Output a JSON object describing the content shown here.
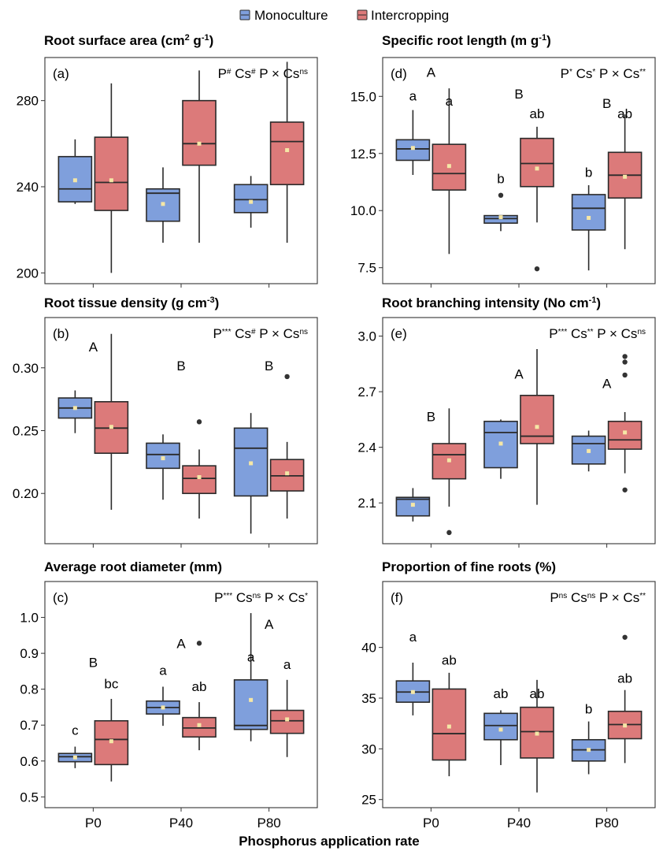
{
  "legend": {
    "items": [
      {
        "label": "Monoculture",
        "color": "#7f9fdc"
      },
      {
        "label": "Intercropping",
        "color": "#dc7a7a"
      }
    ],
    "position": "top-center"
  },
  "x_axis": {
    "title": "Phosphorus application rate",
    "categories": [
      "P0",
      "P40",
      "P80"
    ]
  },
  "colors": {
    "monoculture": "#7f9fdc",
    "intercropping": "#dc7a7a",
    "mean_marker": "#f5e7a6",
    "outline": "#2a2a2a"
  },
  "chart_data": [
    {
      "type": "box",
      "panel": "(a)",
      "title": {
        "main": "Root surface area (cm",
        "sup": "2",
        "mid": " g",
        "sup2": "-1",
        "end": ")"
      },
      "stats": [
        [
          "P",
          "#"
        ],
        [
          "Cs",
          "#"
        ],
        [
          "P × Cs",
          "ns"
        ]
      ],
      "ylim": [
        195,
        300
      ],
      "yticks": [
        200,
        240,
        280
      ],
      "categories": [
        "P0",
        "P40",
        "P80"
      ],
      "groups": [
        {
          "series": "Monoculture",
          "category": "P0",
          "min": 232,
          "q1": 233,
          "median": 239,
          "q3": 254,
          "max": 262,
          "mean": 243,
          "outliers": []
        },
        {
          "series": "Intercropping",
          "category": "P0",
          "min": 200,
          "q1": 229,
          "median": 242,
          "q3": 263,
          "max": 288,
          "mean": 243,
          "outliers": []
        },
        {
          "series": "Monoculture",
          "category": "P40",
          "min": 214,
          "q1": 224,
          "median": 237,
          "q3": 239,
          "max": 249,
          "mean": 232,
          "outliers": []
        },
        {
          "series": "Intercropping",
          "category": "P40",
          "min": 214,
          "q1": 250,
          "median": 260,
          "q3": 280,
          "max": 294,
          "mean": 260,
          "outliers": []
        },
        {
          "series": "Monoculture",
          "category": "P80",
          "min": 221,
          "q1": 228,
          "median": 234,
          "q3": 241,
          "max": 245,
          "mean": 233,
          "outliers": []
        },
        {
          "series": "Intercropping",
          "category": "P80",
          "min": 214,
          "q1": 241,
          "median": 261,
          "q3": 270,
          "max": 298,
          "mean": 257,
          "outliers": []
        }
      ],
      "annotations": []
    },
    {
      "type": "box",
      "panel": "(b)",
      "title": {
        "main": "Root tissue density (g cm",
        "sup": "-3",
        "mid": "",
        "sup2": "",
        "end": ")"
      },
      "stats": [
        [
          "P",
          "***"
        ],
        [
          "Cs",
          "#"
        ],
        [
          "P × Cs",
          "ns"
        ]
      ],
      "ylim": [
        0.16,
        0.34
      ],
      "yticks": [
        0.2,
        0.25,
        0.3
      ],
      "tick_decimals": 2,
      "categories": [
        "P0",
        "P40",
        "P80"
      ],
      "groups": [
        {
          "series": "Monoculture",
          "category": "P0",
          "min": 0.248,
          "q1": 0.26,
          "median": 0.268,
          "q3": 0.276,
          "max": 0.282,
          "mean": 0.268,
          "outliers": []
        },
        {
          "series": "Intercropping",
          "category": "P0",
          "min": 0.187,
          "q1": 0.232,
          "median": 0.252,
          "q3": 0.273,
          "max": 0.327,
          "mean": 0.253,
          "outliers": []
        },
        {
          "series": "Monoculture",
          "category": "P40",
          "min": 0.195,
          "q1": 0.22,
          "median": 0.231,
          "q3": 0.24,
          "max": 0.247,
          "mean": 0.228,
          "outliers": []
        },
        {
          "series": "Intercropping",
          "category": "P40",
          "min": 0.18,
          "q1": 0.2,
          "median": 0.212,
          "q3": 0.222,
          "max": 0.235,
          "mean": 0.213,
          "outliers": [
            0.257
          ]
        },
        {
          "series": "Monoculture",
          "category": "P80",
          "min": 0.168,
          "q1": 0.198,
          "median": 0.236,
          "q3": 0.252,
          "max": 0.264,
          "mean": 0.224,
          "outliers": []
        },
        {
          "series": "Intercropping",
          "category": "P80",
          "min": 0.18,
          "q1": 0.202,
          "median": 0.214,
          "q3": 0.227,
          "max": 0.241,
          "mean": 0.216,
          "outliers": [
            0.293
          ]
        }
      ],
      "annotations": [
        {
          "category": "P0",
          "offset": 0,
          "y": 0.313,
          "text": "A"
        },
        {
          "category": "P40",
          "offset": 0,
          "y": 0.298,
          "text": "B"
        },
        {
          "category": "P80",
          "offset": 0,
          "y": 0.298,
          "text": "B"
        }
      ]
    },
    {
      "type": "box",
      "panel": "(c)",
      "title": {
        "main": "Average root diameter (mm)",
        "sup": "",
        "mid": "",
        "sup2": "",
        "end": ""
      },
      "stats": [
        [
          "P",
          "***"
        ],
        [
          "Cs",
          "ns"
        ],
        [
          "P × Cs",
          "*"
        ]
      ],
      "ylim": [
        0.47,
        1.1
      ],
      "yticks": [
        0.5,
        0.6,
        0.7,
        0.8,
        0.9,
        1.0
      ],
      "tick_decimals": 1,
      "categories": [
        "P0",
        "P40",
        "P80"
      ],
      "groups": [
        {
          "series": "Monoculture",
          "category": "P0",
          "min": 0.58,
          "q1": 0.598,
          "median": 0.612,
          "q3": 0.621,
          "max": 0.64,
          "mean": 0.61,
          "outliers": []
        },
        {
          "series": "Intercropping",
          "category": "P0",
          "min": 0.543,
          "q1": 0.59,
          "median": 0.66,
          "q3": 0.712,
          "max": 0.773,
          "mean": 0.655,
          "outliers": []
        },
        {
          "series": "Monoculture",
          "category": "P40",
          "min": 0.698,
          "q1": 0.731,
          "median": 0.749,
          "q3": 0.767,
          "max": 0.807,
          "mean": 0.749,
          "outliers": []
        },
        {
          "series": "Intercropping",
          "category": "P40",
          "min": 0.63,
          "q1": 0.667,
          "median": 0.692,
          "q3": 0.721,
          "max": 0.764,
          "mean": 0.7,
          "outliers": [
            0.928
          ]
        },
        {
          "series": "Monoculture",
          "category": "P80",
          "min": 0.655,
          "q1": 0.688,
          "median": 0.699,
          "q3": 0.826,
          "max": 1.012,
          "mean": 0.77,
          "outliers": []
        },
        {
          "series": "Intercropping",
          "category": "P80",
          "min": 0.611,
          "q1": 0.677,
          "median": 0.712,
          "q3": 0.741,
          "max": 0.826,
          "mean": 0.716,
          "outliers": []
        }
      ],
      "annotations": [
        {
          "category": "P0",
          "offset": 0,
          "y": 0.862,
          "text": "B"
        },
        {
          "category": "P40",
          "offset": 0,
          "y": 0.915,
          "text": "A"
        },
        {
          "category": "P80",
          "offset": 0,
          "y": 0.968,
          "text": "A"
        },
        {
          "category": "P0",
          "offset": -1,
          "y": 0.673,
          "text": "c"
        },
        {
          "category": "P0",
          "offset": 1,
          "y": 0.803,
          "text": "bc"
        },
        {
          "category": "P40",
          "offset": -1,
          "y": 0.84,
          "text": "a"
        },
        {
          "category": "P40",
          "offset": 1,
          "y": 0.795,
          "text": "ab"
        },
        {
          "category": "P80",
          "offset": -1,
          "y": 0.877,
          "text": "a"
        },
        {
          "category": "P80",
          "offset": 1,
          "y": 0.856,
          "text": "a"
        }
      ]
    },
    {
      "type": "box",
      "panel": "(d)",
      "title": {
        "main": "Specific root length (m g",
        "sup": "-1",
        "mid": "",
        "sup2": "",
        "end": ")"
      },
      "stats": [
        [
          "P",
          "*"
        ],
        [
          "Cs",
          "*"
        ],
        [
          "P × Cs",
          "**"
        ]
      ],
      "ylim": [
        6.8,
        16.7
      ],
      "yticks": [
        7.5,
        10.0,
        12.5,
        15.0
      ],
      "tick_decimals": 1,
      "categories": [
        "P0",
        "P40",
        "P80"
      ],
      "groups": [
        {
          "series": "Monoculture",
          "category": "P0",
          "min": 11.56,
          "q1": 12.2,
          "median": 12.7,
          "q3": 13.1,
          "max": 14.4,
          "mean": 12.74,
          "outliers": []
        },
        {
          "series": "Intercropping",
          "category": "P0",
          "min": 8.1,
          "q1": 10.9,
          "median": 11.62,
          "q3": 12.9,
          "max": 15.35,
          "mean": 11.95,
          "outliers": []
        },
        {
          "series": "Monoculture",
          "category": "P40",
          "min": 9.1,
          "q1": 9.45,
          "median": 9.65,
          "q3": 9.78,
          "max": 9.8,
          "mean": 9.71,
          "outliers": [
            10.67
          ]
        },
        {
          "series": "Intercropping",
          "category": "P40",
          "min": 9.48,
          "q1": 11.05,
          "median": 12.06,
          "q3": 13.16,
          "max": 13.67,
          "mean": 11.84,
          "outliers": [
            7.45
          ]
        },
        {
          "series": "Monoculture",
          "category": "P80",
          "min": 7.38,
          "q1": 9.15,
          "median": 10.1,
          "q3": 10.7,
          "max": 11.11,
          "mean": 9.68,
          "outliers": []
        },
        {
          "series": "Intercropping",
          "category": "P80",
          "min": 8.31,
          "q1": 10.55,
          "median": 11.55,
          "q3": 12.55,
          "max": 14.21,
          "mean": 11.48,
          "outliers": []
        }
      ],
      "annotations": [
        {
          "category": "P0",
          "offset": 0,
          "y": 15.85,
          "text": "A"
        },
        {
          "category": "P40",
          "offset": 0,
          "y": 14.9,
          "text": "B"
        },
        {
          "category": "P80",
          "offset": 0,
          "y": 14.5,
          "text": "B"
        },
        {
          "category": "P0",
          "offset": -1,
          "y": 14.82,
          "text": "a"
        },
        {
          "category": "P0",
          "offset": 1,
          "y": 14.6,
          "text": "a"
        },
        {
          "category": "P40",
          "offset": -1,
          "y": 11.2,
          "text": "b"
        },
        {
          "category": "P40",
          "offset": 1,
          "y": 14.05,
          "text": "ab"
        },
        {
          "category": "P80",
          "offset": -1,
          "y": 11.48,
          "text": "b"
        },
        {
          "category": "P80",
          "offset": 1,
          "y": 14.05,
          "text": "ab"
        }
      ]
    },
    {
      "type": "box",
      "panel": "(e)",
      "title": {
        "main": "Root branching intensity (No cm",
        "sup": "-1",
        "mid": "",
        "sup2": "",
        "end": ")"
      },
      "stats": [
        [
          "P",
          "***"
        ],
        [
          "Cs",
          "**"
        ],
        [
          "P × Cs",
          "ns"
        ]
      ],
      "ylim": [
        1.88,
        3.1
      ],
      "yticks": [
        2.1,
        2.4,
        2.7,
        3.0
      ],
      "tick_decimals": 1,
      "categories": [
        "P0",
        "P40",
        "P80"
      ],
      "groups": [
        {
          "series": "Monoculture",
          "category": "P0",
          "min": 2.0,
          "q1": 2.03,
          "median": 2.12,
          "q3": 2.13,
          "max": 2.18,
          "mean": 2.09,
          "outliers": []
        },
        {
          "series": "Intercropping",
          "category": "P0",
          "min": 2.08,
          "q1": 2.23,
          "median": 2.36,
          "q3": 2.42,
          "max": 2.61,
          "mean": 2.33,
          "outliers": [
            1.94
          ]
        },
        {
          "series": "Monoculture",
          "category": "P40",
          "min": 2.23,
          "q1": 2.29,
          "median": 2.48,
          "q3": 2.54,
          "max": 2.55,
          "mean": 2.42,
          "outliers": []
        },
        {
          "series": "Intercropping",
          "category": "P40",
          "min": 2.09,
          "q1": 2.42,
          "median": 2.46,
          "q3": 2.68,
          "max": 2.93,
          "mean": 2.51,
          "outliers": []
        },
        {
          "series": "Monoculture",
          "category": "P80",
          "min": 2.27,
          "q1": 2.31,
          "median": 2.42,
          "q3": 2.46,
          "max": 2.49,
          "mean": 2.38,
          "outliers": []
        },
        {
          "series": "Intercropping",
          "category": "P80",
          "min": 2.26,
          "q1": 2.39,
          "median": 2.44,
          "q3": 2.54,
          "max": 2.59,
          "mean": 2.48,
          "outliers": [
            2.17,
            2.79,
            2.86,
            2.89
          ]
        }
      ],
      "annotations": [
        {
          "category": "P0",
          "offset": 0,
          "y": 2.54,
          "text": "B"
        },
        {
          "category": "P40",
          "offset": 0,
          "y": 2.77,
          "text": "A"
        },
        {
          "category": "P80",
          "offset": 0,
          "y": 2.72,
          "text": "A"
        }
      ]
    },
    {
      "type": "box",
      "panel": "(f)",
      "title": {
        "main": "Proportion of fine roots (%)",
        "sup": "",
        "mid": "",
        "sup2": "",
        "end": ""
      },
      "stats": [
        [
          "P",
          "ns"
        ],
        [
          "Cs",
          "ns"
        ],
        [
          "P × Cs",
          "**"
        ]
      ],
      "ylim": [
        24.2,
        46.5
      ],
      "yticks": [
        25,
        30,
        35,
        40
      ],
      "tick_decimals": 0,
      "categories": [
        "P0",
        "P40",
        "P80"
      ],
      "groups": [
        {
          "series": "Monoculture",
          "category": "P0",
          "min": 33.3,
          "q1": 34.6,
          "median": 35.6,
          "q3": 36.7,
          "max": 38.5,
          "mean": 35.6,
          "outliers": []
        },
        {
          "series": "Intercropping",
          "category": "P0",
          "min": 27.3,
          "q1": 28.9,
          "median": 31.5,
          "q3": 35.9,
          "max": 37.5,
          "mean": 32.2,
          "outliers": []
        },
        {
          "series": "Monoculture",
          "category": "P40",
          "min": 28.4,
          "q1": 30.9,
          "median": 32.3,
          "q3": 33.5,
          "max": 33.8,
          "mean": 31.9,
          "outliers": []
        },
        {
          "series": "Intercropping",
          "category": "P40",
          "min": 25.7,
          "q1": 29.1,
          "median": 31.7,
          "q3": 34.1,
          "max": 36.8,
          "mean": 31.5,
          "outliers": []
        },
        {
          "series": "Monoculture",
          "category": "P80",
          "min": 27.5,
          "q1": 28.8,
          "median": 29.9,
          "q3": 30.9,
          "max": 32.7,
          "mean": 29.9,
          "outliers": []
        },
        {
          "series": "Intercropping",
          "category": "P80",
          "min": 28.6,
          "q1": 31.0,
          "median": 32.4,
          "q3": 33.7,
          "max": 35.8,
          "mean": 32.3,
          "outliers": [
            41.0
          ]
        }
      ],
      "annotations": [
        {
          "category": "P0",
          "offset": -1,
          "y": 40.6,
          "text": "a"
        },
        {
          "category": "P0",
          "offset": 1,
          "y": 38.3,
          "text": "ab"
        },
        {
          "category": "P40",
          "offset": -1,
          "y": 35.0,
          "text": "ab"
        },
        {
          "category": "P40",
          "offset": 1,
          "y": 35.0,
          "text": "ab"
        },
        {
          "category": "P80",
          "offset": -1,
          "y": 33.5,
          "text": "b"
        },
        {
          "category": "P80",
          "offset": 1,
          "y": 36.5,
          "text": "ab"
        }
      ]
    }
  ]
}
